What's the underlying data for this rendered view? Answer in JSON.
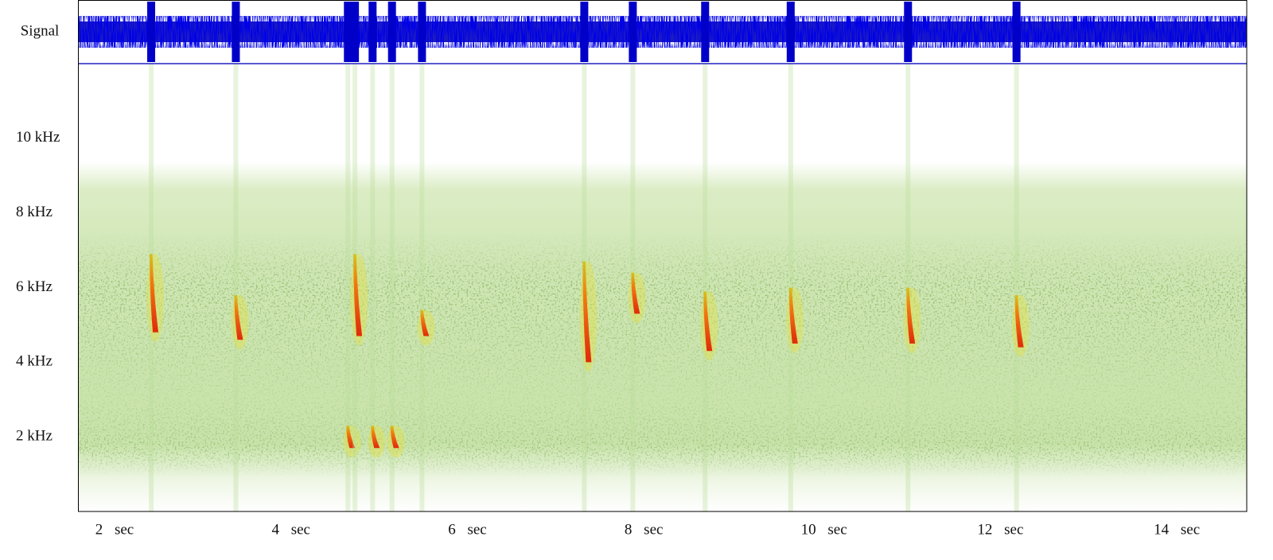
{
  "chart_data": {
    "type": "spectrogram",
    "signal_label": "Signal",
    "color": "#0000c8",
    "xlim": [
      1.75,
      15
    ],
    "xticks": [
      {
        "value": 2,
        "label": "2 sec"
      },
      {
        "value": 4,
        "label": "4 sec"
      },
      {
        "value": 6,
        "label": "6 sec"
      },
      {
        "value": 8,
        "label": "8 sec"
      },
      {
        "value": 10,
        "label": "10 sec"
      },
      {
        "value": 12,
        "label": "12 sec"
      },
      {
        "value": 14,
        "label": "14 sec"
      }
    ],
    "ylim": [
      0,
      12
    ],
    "yticks": [
      {
        "value": 2,
        "label": "2 kHz"
      },
      {
        "value": 4,
        "label": "4 kHz"
      },
      {
        "value": 6,
        "label": "6 kHz"
      },
      {
        "value": 8,
        "label": "8 kHz"
      },
      {
        "value": 10,
        "label": "10 kHz"
      }
    ],
    "events": [
      {
        "time": 2.58,
        "top": 6.9,
        "bottom": 4.8
      },
      {
        "time": 3.54,
        "top": 5.8,
        "bottom": 4.6
      },
      {
        "time": 4.81,
        "top": 2.3,
        "bottom": 1.7
      },
      {
        "time": 4.89,
        "top": 6.9,
        "bottom": 4.7
      },
      {
        "time": 5.09,
        "top": 2.3,
        "bottom": 1.7
      },
      {
        "time": 5.31,
        "top": 2.3,
        "bottom": 1.7
      },
      {
        "time": 5.65,
        "top": 5.4,
        "bottom": 4.7
      },
      {
        "time": 7.49,
        "top": 6.7,
        "bottom": 4.0
      },
      {
        "time": 8.04,
        "top": 6.4,
        "bottom": 5.3
      },
      {
        "time": 8.86,
        "top": 5.9,
        "bottom": 4.3
      },
      {
        "time": 9.83,
        "top": 6.0,
        "bottom": 4.5
      },
      {
        "time": 11.16,
        "top": 6.0,
        "bottom": 4.5
      },
      {
        "time": 12.39,
        "top": 5.8,
        "bottom": 4.4
      }
    ]
  }
}
